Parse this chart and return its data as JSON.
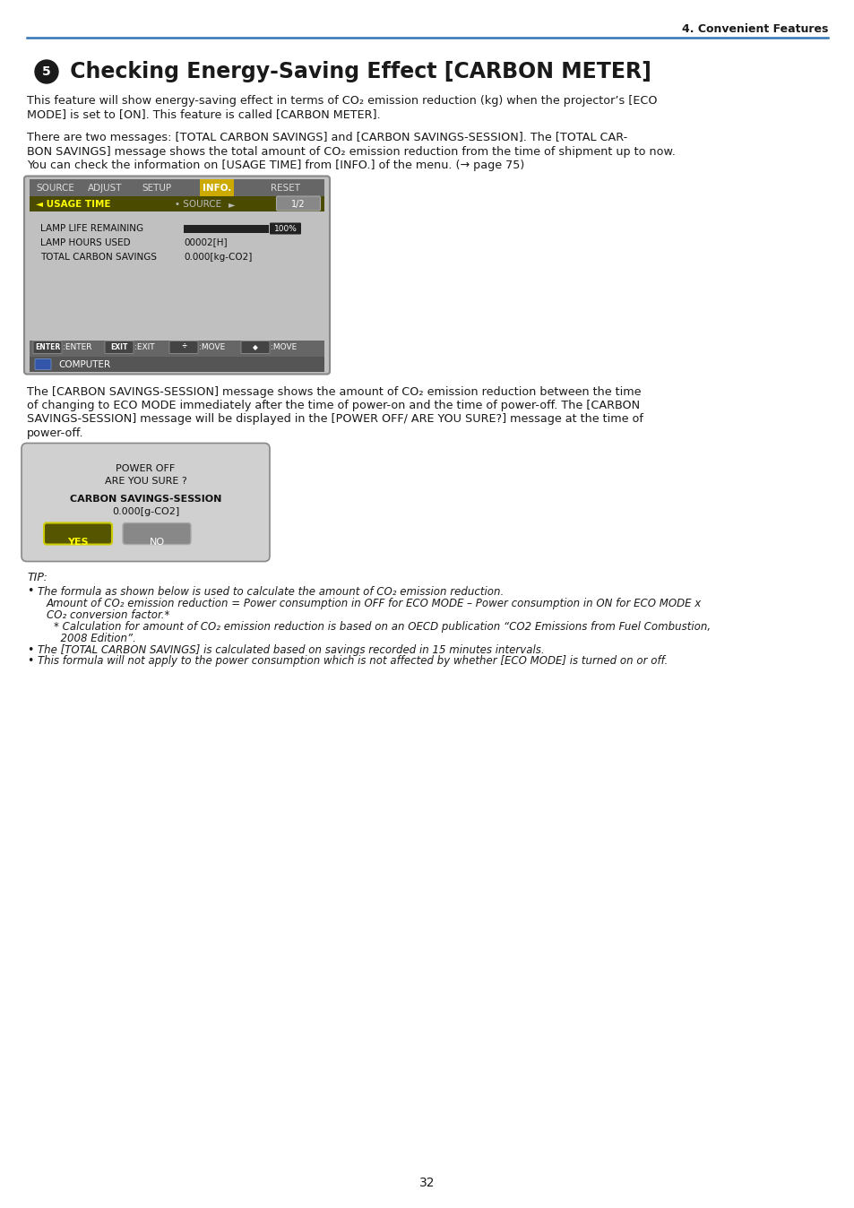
{
  "page_bg": "#ffffff",
  "header_text": "4. Convenient Features",
  "header_line_color": "#2E75B6",
  "title_number": "5",
  "title_text": " Checking Energy-Saving Effect [CARBON METER]",
  "para1_lines": [
    "This feature will show energy-saving effect in terms of CO₂ emission reduction (kg) when the projector’s [ECO",
    "MODE] is set to [ON]. This feature is called [CARBON METER]."
  ],
  "para2_lines": [
    "There are two messages: [TOTAL CARBON SAVINGS] and [CARBON SAVINGS-SESSION]. The [TOTAL CAR-",
    "BON SAVINGS] message shows the total amount of CO₂ emission reduction from the time of shipment up to now.",
    "You can check the information on [USAGE TIME] from [INFO.] of the menu. (→ page 75)"
  ],
  "para3_lines": [
    "The [CARBON SAVINGS-SESSION] message shows the amount of CO₂ emission reduction between the time",
    "of changing to ECO MODE immediately after the time of power-on and the time of power-off. The [CARBON",
    "SAVINGS-SESSION] message will be displayed in the [POWER OFF/ ARE YOU SURE?] message at the time of",
    "power-off."
  ],
  "tip_label": "TIP:",
  "tip_lines": [
    {
      "bullet": true,
      "indent": 0,
      "text": "The formula as shown below is used to calculate the amount of CO₂ emission reduction."
    },
    {
      "bullet": false,
      "indent": 1,
      "text": "Amount of CO₂ emission reduction = Power consumption in OFF for ECO MODE – Power consumption in ON for ECO MODE x"
    },
    {
      "bullet": false,
      "indent": 1,
      "text": "CO₂ conversion factor.*"
    },
    {
      "bullet": false,
      "indent": 2,
      "text": "* Calculation for amount of CO₂ emission reduction is based on an OECD publication “CO2 Emissions from Fuel Combustion,"
    },
    {
      "bullet": false,
      "indent": 2,
      "text": "  2008 Edition”."
    },
    {
      "bullet": true,
      "indent": 0,
      "text": "The [TOTAL CARBON SAVINGS] is calculated based on savings recorded in 15 minutes intervals."
    },
    {
      "bullet": true,
      "indent": 0,
      "text": "This formula will not apply to the power consumption which is not affected by whether [ECO MODE] is turned on or off."
    }
  ],
  "page_num": "32",
  "text_color": "#1a1a1a",
  "link_color": "#2E75B6",
  "screen1_bg": "#c0c0c0",
  "screen1_header_bg": "#666666",
  "screen1_tab_active_bg": "#ccaa00",
  "screen1_row2_bg": "#4a4a00",
  "screen1_footer_bg": "#666666",
  "screen1_comp_bg": "#555555",
  "screen2_bg": "#d0d0d0"
}
